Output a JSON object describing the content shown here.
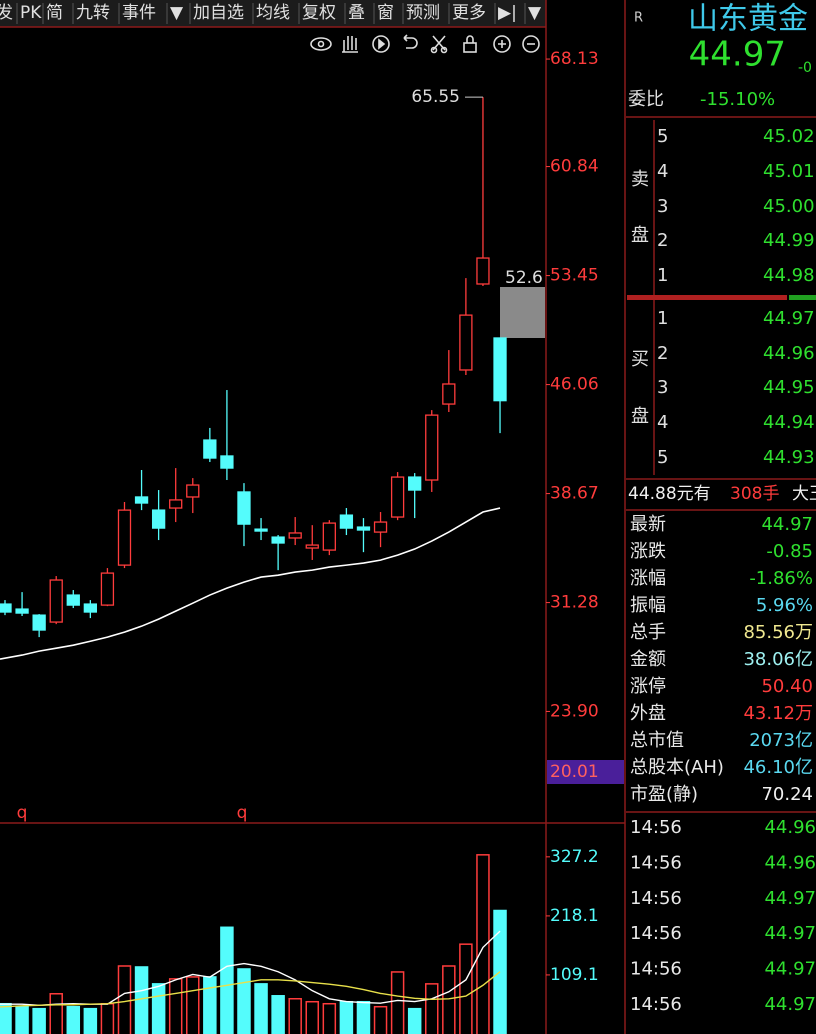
{
  "toolbar": [
    "发",
    "PK",
    "简",
    "九转",
    "事件",
    "▼",
    "加自选",
    "均线",
    "复权",
    "叠",
    "窗",
    "预测",
    "更多",
    "▶|",
    "▼"
  ],
  "chart_data": [
    {
      "type": "candlestick",
      "open": [
        31.18,
        30.84,
        30.43,
        29.96,
        31.79,
        31.18,
        31.11,
        33.82,
        38.44,
        37.55,
        37.69,
        38.44,
        42.3,
        41.22,
        38.78,
        36.26,
        35.72,
        35.66,
        34.98,
        34.84,
        37.21,
        36.4,
        36.06,
        37.08,
        39.79,
        39.59,
        44.74,
        47.05,
        52.88,
        49.22
      ],
      "high": [
        31.45,
        31.99,
        30.5,
        33.08,
        32.13,
        31.45,
        33.62,
        38.1,
        40.27,
        38.91,
        40.4,
        39.72,
        43.12,
        45.69,
        39.38,
        37.01,
        35.86,
        37.08,
        36.53,
        36.87,
        37.69,
        37.01,
        37.42,
        40.13,
        40.06,
        44.33,
        48.4,
        53.28,
        65.55,
        49.22
      ],
      "low": [
        30.43,
        30.37,
        28.94,
        29.82,
        30.91,
        30.23,
        31.04,
        33.62,
        37.55,
        35.52,
        36.74,
        37.35,
        40.81,
        39.59,
        35.11,
        35.52,
        33.48,
        35.18,
        34.17,
        34.5,
        35.86,
        34.7,
        35.04,
        36.87,
        37.01,
        38.78,
        44.2,
        46.71,
        52.74,
        42.77
      ],
      "close": [
        30.64,
        30.57,
        29.42,
        32.81,
        31.11,
        30.64,
        33.28,
        37.55,
        38.03,
        36.33,
        38.24,
        39.25,
        41.08,
        40.4,
        36.6,
        36.13,
        35.32,
        36.0,
        35.18,
        36.67,
        36.33,
        36.2,
        36.74,
        39.79,
        38.91,
        43.99,
        46.1,
        50.77,
        54.64,
        44.97
      ],
      "ma": [
        27.45,
        27.72,
        27.99,
        28.19,
        28.39,
        28.66,
        28.94,
        29.28,
        29.68,
        30.16,
        30.7,
        31.24,
        31.79,
        32.26,
        32.67,
        33.01,
        33.14,
        33.35,
        33.48,
        33.69,
        33.82,
        33.96,
        34.16,
        34.5,
        34.91,
        35.45,
        36.06,
        36.74,
        37.42,
        37.69
      ],
      "ylim": [
        16.54,
        70.1
      ],
      "yticks": [
        68.13,
        60.84,
        53.45,
        46.06,
        38.67,
        31.28,
        {
          "value": 23.9,
          "label": "23.90"
        }
      ],
      "low_marker": 20.01,
      "high_label": 65.55,
      "price_label": 52.6,
      "event_markers": [
        "q",
        "q"
      ]
    },
    {
      "type": "volume",
      "values": [
        55.9,
        50.4,
        46.8,
        74.3,
        50.4,
        46.8,
        55.9,
        125.6,
        123.8,
        92.6,
        101.8,
        105.4,
        105.4,
        197.1,
        120.1,
        92.6,
        70.6,
        65.1,
        59.6,
        55.9,
        59.6,
        59.6,
        50.4,
        114.6,
        46.8,
        92.6,
        125.6,
        165.9,
        330.9,
        228.1
      ],
      "ma": [
        55,
        55,
        53,
        55,
        56,
        55,
        55,
        75,
        80,
        88,
        100,
        110,
        105,
        125,
        130,
        125,
        115,
        100,
        80,
        65,
        60,
        58,
        57,
        62,
        60,
        65,
        78,
        100,
        160,
        190
      ],
      "ma2": [
        50,
        52,
        53,
        54,
        54,
        55,
        56,
        60,
        65,
        70,
        75,
        80,
        85,
        90,
        95,
        100,
        100,
        98,
        95,
        92,
        88,
        82,
        75,
        70,
        66,
        64,
        65,
        70,
        90,
        115
      ],
      "ylim": [
        0,
        386
      ],
      "yticks": [
        327.2,
        218.1,
        109.1
      ]
    }
  ],
  "quote": {
    "code": "R",
    "name": "山东黄金",
    "price": "44.97",
    "change": "-0"
  },
  "order_ratio": {
    "label": "委比",
    "value": "-15.10%"
  },
  "sell": {
    "label": [
      "卖",
      "盘"
    ],
    "levels": [
      {
        "n": "5",
        "price": "45.02"
      },
      {
        "n": "4",
        "price": "45.01"
      },
      {
        "n": "3",
        "price": "45.00"
      },
      {
        "n": "2",
        "price": "44.99"
      },
      {
        "n": "1",
        "price": "44.98"
      }
    ]
  },
  "buy": {
    "label": [
      "买",
      "盘"
    ],
    "levels": [
      {
        "n": "1",
        "price": "44.97"
      },
      {
        "n": "2",
        "price": "44.96"
      },
      {
        "n": "3",
        "price": "44.95"
      },
      {
        "n": "4",
        "price": "44.94"
      },
      {
        "n": "5",
        "price": "44.93"
      }
    ]
  },
  "last_trade": [
    "44.88元有",
    "308手",
    "大王"
  ],
  "stats": [
    {
      "label": "最新",
      "value": "44.97"
    },
    {
      "label": "涨跌",
      "value": "-0.85"
    },
    {
      "label": "涨幅",
      "value": "-1.86%"
    },
    {
      "label": "振幅",
      "value": "5.96%"
    },
    {
      "label": "总手",
      "value": "85.56万"
    },
    {
      "label": "金额",
      "value": "38.06亿"
    },
    {
      "label": "涨停",
      "value": "50.40"
    },
    {
      "label": "外盘",
      "value": "43.12万"
    },
    {
      "label": "总市值",
      "value": "2073亿"
    },
    {
      "label": "总股本(AH)",
      "value": "46.10亿"
    },
    {
      "label": "市盈(静)",
      "value": "70.24"
    }
  ],
  "trades": [
    {
      "time": "14:56",
      "price": "44.96"
    },
    {
      "time": "14:56",
      "price": "44.96"
    },
    {
      "time": "14:56",
      "price": "44.97"
    },
    {
      "time": "14:56",
      "price": "44.97"
    },
    {
      "time": "14:56",
      "price": "44.97"
    },
    {
      "time": "14:56",
      "price": "44.97"
    }
  ]
}
